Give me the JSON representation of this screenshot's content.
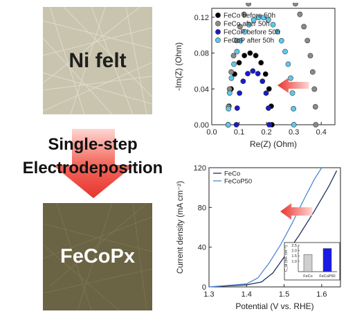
{
  "panels": {
    "top": {
      "label": "Ni felt",
      "color": "#c9c4ae"
    },
    "bottom": {
      "label": "FeCoPx",
      "color": "#6a6344"
    }
  },
  "process": {
    "line1": "Single-step",
    "line2": "Electrodeposition",
    "arrow_color": "#e8342e"
  },
  "chart_data": [
    {
      "type": "scatter",
      "title": "",
      "xlabel": "Re(Z) (Ohm)",
      "ylabel": "-Im(Z) (Ohm)",
      "xlim": [
        0.0,
        0.45
      ],
      "ylim": [
        0.0,
        0.13
      ],
      "xticks": [
        "0.0",
        "0.1",
        "0.2",
        "0.3",
        "0.4"
      ],
      "yticks": [
        "0.00",
        "0.04",
        "0.08",
        "0.12"
      ],
      "legend_position": "top-left",
      "annotation": "red arrow pointing left (impedance decrease)",
      "series": [
        {
          "name": "FeCo before 50h",
          "color": "#000000",
          "center": 0.14,
          "radius": 0.08,
          "points": 13
        },
        {
          "name": "FeCo after 50h",
          "color": "#8a8a8a",
          "center": 0.22,
          "radius": 0.16,
          "points": 26
        },
        {
          "name": "FeCoP before 50h",
          "color": "#1a1acd",
          "center": 0.15,
          "radius": 0.06,
          "points": 11
        },
        {
          "name": "FeCoP after 50h",
          "color": "#5fc8ec",
          "center": 0.18,
          "radius": 0.12,
          "points": 22
        }
      ]
    },
    {
      "type": "line",
      "title": "",
      "xlabel": "Potential (V vs. RHE)",
      "ylabel": "Current density (mA cm⁻²)",
      "xlim": [
        1.3,
        1.65
      ],
      "ylim": [
        0,
        120
      ],
      "xticks": [
        "1.3",
        "1.4",
        "1.5",
        "1.6"
      ],
      "yticks": [
        "0",
        "40",
        "80",
        "120"
      ],
      "legend_position": "top-left",
      "annotation": "red arrow pointing left (lower overpotential)",
      "series": [
        {
          "name": "FeCo",
          "color": "#1f2f5f",
          "x": [
            1.3,
            1.4,
            1.44,
            1.47,
            1.5,
            1.54,
            1.58,
            1.62,
            1.64
          ],
          "y": [
            0,
            2,
            5,
            14,
            30,
            52,
            76,
            102,
            117
          ]
        },
        {
          "name": "FeCoP50",
          "color": "#4f86d6",
          "x": [
            1.3,
            1.4,
            1.43,
            1.46,
            1.49,
            1.52,
            1.55,
            1.58,
            1.6
          ],
          "y": [
            0,
            3,
            9,
            24,
            42,
            63,
            86,
            108,
            120
          ]
        }
      ],
      "inset": {
        "type": "bar",
        "ylabel": "C_dl (mF cm⁻²)",
        "ylim": [
          0,
          2.5
        ],
        "yticks": [
          "1.0",
          "1.5",
          "2.0",
          "2.5"
        ],
        "categories": [
          "FeCo",
          "FeCoP50"
        ],
        "values": [
          1.62,
          2.2
        ],
        "colors": [
          "#cfcfcf",
          "#1a1ae6"
        ]
      }
    }
  ]
}
